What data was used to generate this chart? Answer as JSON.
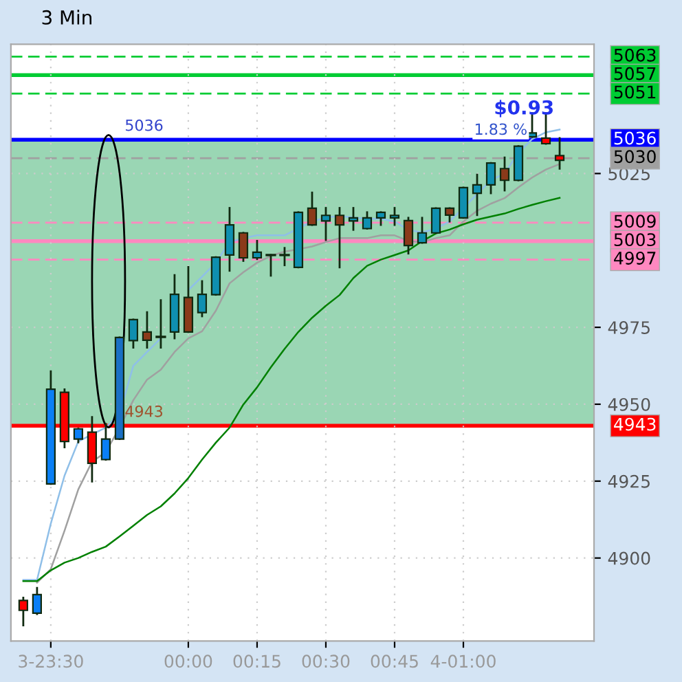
{
  "chart_data": {
    "type": "candlestick",
    "title": "3 Min",
    "categories": [
      null,
      null,
      "3-23:30",
      null,
      null,
      null,
      null,
      null,
      null,
      null,
      null,
      null,
      "00:00",
      null,
      null,
      null,
      null,
      "00:15",
      null,
      null,
      null,
      null,
      "00:30",
      null,
      null,
      null,
      null,
      "00:45",
      null,
      null,
      null,
      null,
      "4-01:00",
      null,
      null,
      null,
      null,
      null,
      null,
      null
    ],
    "ohlc": [
      [
        4886.2,
        4887.1,
        4878.1,
        4883.0
      ],
      [
        4882.1,
        4890.3,
        4881.8,
        4888.1
      ],
      [
        4924.1,
        4960.7,
        4924.1,
        4954.9
      ],
      [
        4953.9,
        4954.8,
        4936.0,
        4937.9
      ],
      [
        4938.7,
        4942.0,
        4937.6,
        4942.0
      ],
      [
        4940.9,
        4945.8,
        4924.9,
        4930.8
      ],
      [
        4932.0,
        4943.6,
        4932.0,
        4938.7
      ],
      [
        4938.7,
        4971.7,
        4938.7,
        4971.7
      ],
      [
        4970.7,
        4977.5,
        4968.4,
        4977.5
      ],
      [
        4973.5,
        4979.9,
        4968.4,
        4970.8
      ],
      [
        4971.9,
        4983.8,
        4968.4,
        4971.9
      ],
      [
        4973.5,
        4992.0,
        4971.4,
        4985.7
      ],
      [
        4984.7,
        4994.6,
        4973.5,
        4973.5
      ],
      [
        4979.8,
        4990.0,
        4978.6,
        4985.7
      ],
      [
        4985.6,
        4997.8,
        4985.6,
        4997.8
      ],
      [
        4998.5,
        5013.8,
        4993.4,
        5008.3
      ],
      [
        5005.7,
        5005.7,
        4996.6,
        4997.6
      ],
      [
        4997.6,
        5003.1,
        4997.2,
        4999.4
      ],
      [
        4998.5,
        4998.5,
        4991.8,
        4998.5
      ],
      [
        4998.5,
        5000.8,
        4995.2,
        4998.5
      ],
      [
        4994.5,
        5012.4,
        4994.5,
        5012.4
      ],
      [
        5013.7,
        5018.8,
        5008.3,
        5008.3
      ],
      [
        5009.6,
        5013.8,
        5003.4,
        5011.4
      ],
      [
        5011.4,
        5013.8,
        4994.5,
        5008.3
      ],
      [
        5009.6,
        5013.8,
        5006.7,
        5010.6
      ],
      [
        5007.1,
        5012.4,
        5007.1,
        5010.6
      ],
      [
        5010.6,
        5012.4,
        5008.3,
        5012.4
      ],
      [
        5010.6,
        5013.8,
        5008.3,
        5011.4
      ],
      [
        5009.7,
        5010.6,
        4999.0,
        5001.6
      ],
      [
        5002.5,
        5010.6,
        5002.5,
        5005.7
      ],
      [
        5005.7,
        5013.7,
        5005.7,
        5013.7
      ],
      [
        5013.7,
        5013.7,
        5009.4,
        5011.5
      ],
      [
        5010.6,
        5020.4,
        5010.6,
        5020.4
      ],
      [
        5018.6,
        5024.6,
        5011.5,
        5021.3
      ],
      [
        5021.3,
        5028.4,
        5018.6,
        5028.4
      ],
      [
        5026.6,
        5030.2,
        5019.5,
        5022.8
      ],
      [
        5022.8,
        5033.9,
        5022.8,
        5033.9
      ],
      [
        5036.9,
        5044.6,
        5036.9,
        5038.2
      ],
      [
        5036.5,
        5044.6,
        5034.7,
        5034.7
      ],
      [
        5030.8,
        5036.5,
        5026.6,
        5029.3
      ]
    ],
    "colors": [
      "#ff0000",
      "#0a7ff5",
      "#0a7ff5",
      "#ff0000",
      "#0a7ff5",
      "#ff0000",
      "#0a7ff5",
      "#1a6fc4",
      "#0f8fb0",
      "#8b3a1a",
      "#102a10",
      "#0f8fb0",
      "#8b3a1a",
      "#0f8fb0",
      "#0f8fb0",
      "#0f8fb0",
      "#8b3a1a",
      "#0f8fb0",
      "#102a10",
      "#102a10",
      "#0f8fb0",
      "#8b3a1a",
      "#0f8fb0",
      "#8b3a1a",
      "#0f8fb0",
      "#0f8fb0",
      "#0f8fb0",
      "#0f8fb0",
      "#8b3a1a",
      "#0f8fb0",
      "#0f8fb0",
      "#8b3a1a",
      "#0f8fb0",
      "#0f8fb0",
      "#0f8fb0",
      "#8b3a1a",
      "#0f8fb0",
      "#0f8fb0",
      "#ff0000",
      "#ff0000"
    ],
    "series": [
      {
        "type": "line",
        "color": "#8fbfe8",
        "values": [
          4892.9,
          4892.9,
          4911.2,
          4926.8,
          4937.9,
          4940.2,
          4942.4,
          4946.9,
          4962.5,
          4967.0,
          4971.4,
          null,
          4987.1,
          4991.5,
          4996.0,
          5002.7,
          5004.0,
          5004.9,
          5004.9,
          5004.9,
          5007.1,
          5009.4,
          5010.7,
          5011.2,
          5010.7,
          5010.3,
          5010.3,
          5009.4,
          5006.7,
          5005.8,
          5007.1,
          5009.4,
          5013.8,
          5018.3,
          5022.8,
          5025.0,
          5031.7,
          5036.2,
          5038.4,
          5039.3
        ]
      },
      {
        "type": "line",
        "color": "#a0a0a0",
        "values": [
          null,
          4892.0,
          4896.4,
          4908.9,
          4922.3,
          4931.3,
          4934.4,
          4942.4,
          4951.3,
          4958.0,
          4961.2,
          4967.0,
          4971.4,
          4973.7,
          4980.4,
          4989.3,
          4992.9,
          4996.0,
          4998.2,
          4999.6,
          5000.4,
          5001.3,
          5002.7,
          5004.0,
          5004.0,
          5004.0,
          5004.9,
          5004.9,
          5003.1,
          5002.7,
          5004.0,
          5004.9,
          5009.4,
          5012.9,
          5015.2,
          5017.0,
          5020.5,
          5023.7,
          5026.3,
          5028.1
        ]
      },
      {
        "type": "line",
        "color": "#008000",
        "values": [
          4892.5,
          4892.5,
          4896.0,
          4898.5,
          4900.0,
          4902.0,
          4903.7,
          4907.0,
          4910.5,
          4914.0,
          4916.8,
          4921.0,
          4926.0,
          4932.0,
          4937.5,
          4942.4,
          4949.9,
          4955.5,
          4962.0,
          4968.0,
          4973.5,
          4978.1,
          4982.0,
          4985.5,
          4991.0,
          4995.0,
          4997.0,
          4998.5,
          5000.0,
          5003.0,
          5005.5,
          5006.8,
          5008.5,
          5010.0,
          5011.0,
          5012.0,
          5013.5,
          5014.8,
          5016.0,
          5017.1
        ]
      }
    ],
    "ylim": [
      4873,
      5067
    ],
    "yticks": [
      4900,
      4925,
      4950,
      4975,
      5025
    ],
    "grid": true,
    "bands": [
      {
        "axis": "y",
        "from": 4943,
        "to": 5036,
        "color": "#9ad6b4"
      }
    ],
    "ref_lines": [
      {
        "axis": "y",
        "value": 5063,
        "label": "5063",
        "color": "#00cc33",
        "line_style": "dashed"
      },
      {
        "axis": "y",
        "value": 5057,
        "label": "5057",
        "color": "#00cc33",
        "line_style": "solid"
      },
      {
        "axis": "y",
        "value": 5051,
        "label": "5051",
        "color": "#00cc33",
        "line_style": "dashed"
      },
      {
        "axis": "y",
        "value": 5036,
        "label": "5036",
        "color": "#0000ff",
        "line_style": "solid"
      },
      {
        "axis": "y",
        "value": 5030,
        "label": "5030",
        "color": "#a0a0a0",
        "line_style": "dashed"
      },
      {
        "axis": "y",
        "value": 5009,
        "label": "5009",
        "color": "#ff88c0",
        "line_style": "dashed"
      },
      {
        "axis": "y",
        "value": 5003,
        "label": "5003",
        "color": "#ff88c0",
        "line_style": "solid"
      },
      {
        "axis": "y",
        "value": 4997,
        "label": "4997",
        "color": "#ff88c0",
        "line_style": "dashed"
      },
      {
        "axis": "y",
        "value": 4943,
        "label": "4943",
        "color": "#ff0000",
        "line_style": "solid"
      }
    ],
    "annotations": [
      {
        "text": "5036",
        "y": 5036
      },
      {
        "text": "4943",
        "y": 4943
      },
      "$0.93",
      "1.83 %"
    ]
  }
}
